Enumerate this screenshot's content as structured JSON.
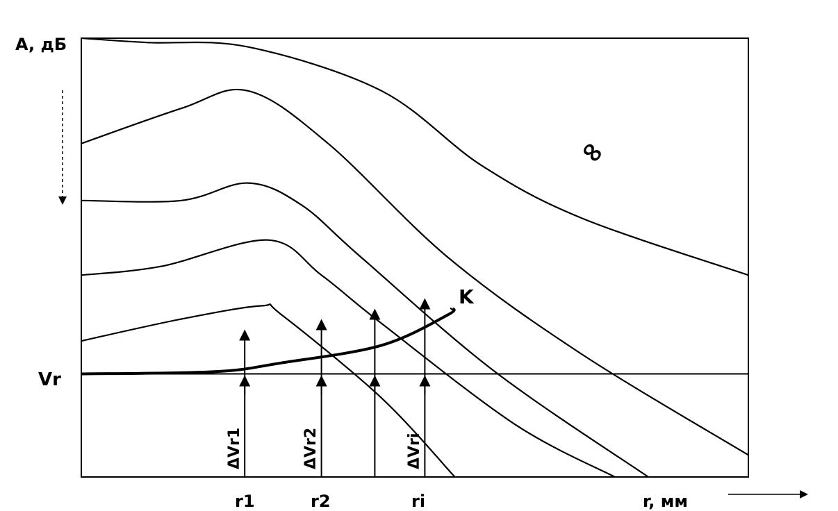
{
  "chart_data": {
    "type": "line",
    "title": "",
    "ylabel": "A, дБ",
    "xlabel": "r, мм",
    "y_reference_label": "Vr",
    "x_ticks": [
      "r1",
      "r2",
      "ri"
    ],
    "delta_labels": [
      "ΔVr1",
      "ΔVr2",
      "ΔVri"
    ],
    "series": [
      {
        "name": "∞",
        "points": [
          [
            0,
            100
          ],
          [
            10,
            99
          ],
          [
            25,
            98
          ],
          [
            45,
            88
          ],
          [
            60,
            71
          ],
          [
            75,
            59
          ],
          [
            100,
            46
          ]
        ]
      },
      {
        "points": [
          [
            0,
            76
          ],
          [
            15,
            84
          ],
          [
            25,
            88
          ],
          [
            37,
            76
          ],
          [
            55,
            50
          ],
          [
            75,
            28
          ],
          [
            100,
            5
          ]
        ]
      },
      {
        "points": [
          [
            0,
            63
          ],
          [
            15,
            63
          ],
          [
            25,
            67
          ],
          [
            33,
            62
          ],
          [
            42,
            50
          ],
          [
            62,
            24
          ],
          [
            85,
            0
          ]
        ]
      },
      {
        "points": [
          [
            0,
            46
          ],
          [
            12,
            48
          ],
          [
            28,
            54
          ],
          [
            36,
            46
          ],
          [
            45,
            35
          ],
          [
            65,
            12
          ],
          [
            80,
            0
          ]
        ]
      },
      {
        "points": [
          [
            0,
            31
          ],
          [
            15,
            36
          ],
          [
            27,
            39
          ],
          [
            30,
            37
          ],
          [
            45,
            18
          ],
          [
            56,
            0
          ]
        ]
      }
    ],
    "k_curve": {
      "name": "K",
      "points": [
        [
          0,
          23.5
        ],
        [
          20,
          24
        ],
        [
          30,
          26
        ],
        [
          45,
          30
        ],
        [
          55,
          37
        ],
        [
          55.5,
          38.5
        ]
      ]
    },
    "reference_line_y": 23.5,
    "markers_x": [
      24.5,
      36,
      44,
      51.5
    ],
    "xlim": [
      0,
      100
    ],
    "ylim": [
      0,
      100
    ],
    "grid": false
  }
}
